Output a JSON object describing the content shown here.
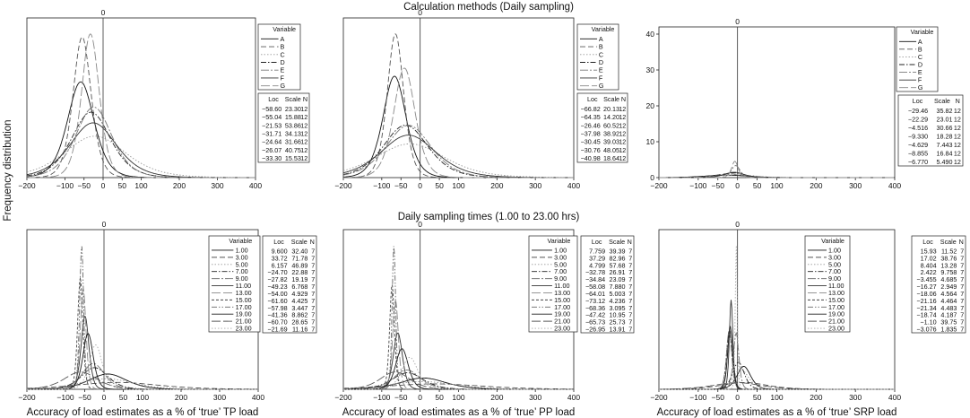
{
  "figure": {
    "top_title": "Calculation methods (Daily sampling)",
    "bottom_title": "Daily sampling times (1.00 to 23.00 hrs)",
    "ylabel": "Frequency distribution"
  },
  "chart_data": [
    {
      "type": "line",
      "group": "top",
      "xlabel": "",
      "xlim": [
        -200,
        400
      ],
      "xticks": [
        -200,
        -100,
        -50,
        0,
        50,
        100,
        200,
        300,
        400
      ],
      "ref_line_label": "0",
      "yaxis_visible": false,
      "legend_title": "Variable",
      "table_headers": [
        "Loc",
        "Scale",
        "N"
      ],
      "series": [
        {
          "name": "A",
          "dash": "solid",
          "loc": "-58.60",
          "scale": "23.30",
          "n": "12"
        },
        {
          "name": "B",
          "dash": "dash",
          "loc": "-55.04",
          "scale": "15.88",
          "n": "12"
        },
        {
          "name": "C",
          "dash": "dot",
          "loc": "-21.53",
          "scale": "53.86",
          "n": "12"
        },
        {
          "name": "D",
          "dash": "dashdot",
          "loc": "-31.71",
          "scale": "34.13",
          "n": "12"
        },
        {
          "name": "E",
          "dash": "longdashdot",
          "loc": "-24.64",
          "scale": "31.66",
          "n": "12"
        },
        {
          "name": "F",
          "dash": "solid",
          "loc": "-26.07",
          "scale": "40.75",
          "n": "12"
        },
        {
          "name": "G",
          "dash": "longdash",
          "loc": "-33.30",
          "scale": "15.53",
          "n": "12"
        }
      ]
    },
    {
      "type": "line",
      "group": "top",
      "xlabel": "",
      "xlim": [
        -200,
        400
      ],
      "xticks": [
        -200,
        -100,
        -50,
        0,
        50,
        100,
        200,
        300,
        400
      ],
      "ref_line_label": "0",
      "yaxis_visible": false,
      "legend_title": "Variable",
      "table_headers": [
        "Loc",
        "Scale",
        "N"
      ],
      "series": [
        {
          "name": "A",
          "dash": "solid",
          "loc": "-66.82",
          "scale": "20.13",
          "n": "12"
        },
        {
          "name": "B",
          "dash": "dash",
          "loc": "-64.35",
          "scale": "14.20",
          "n": "12"
        },
        {
          "name": "C",
          "dash": "dot",
          "loc": "-26.46",
          "scale": "60.52",
          "n": "12"
        },
        {
          "name": "D",
          "dash": "dashdot",
          "loc": "-37.98",
          "scale": "38.92",
          "n": "12"
        },
        {
          "name": "E",
          "dash": "longdashdot",
          "loc": "-30.45",
          "scale": "39.03",
          "n": "12"
        },
        {
          "name": "F",
          "dash": "solid",
          "loc": "-30.76",
          "scale": "48.05",
          "n": "12"
        },
        {
          "name": "G",
          "dash": "longdash",
          "loc": "-40.98",
          "scale": "18.64",
          "n": "12"
        }
      ]
    },
    {
      "type": "line",
      "group": "top",
      "xlabel": "",
      "xlim": [
        -200,
        400
      ],
      "xticks": [
        -200,
        -100,
        -50,
        0,
        50,
        100,
        200,
        300,
        400
      ],
      "ref_line_label": "0",
      "yaxis_visible": true,
      "ylim": [
        0,
        42
      ],
      "yticks": [
        0,
        10,
        20,
        30,
        40
      ],
      "legend_title": "Variable",
      "table_headers": [
        "Loc",
        "Scale",
        "N"
      ],
      "series": [
        {
          "name": "A",
          "dash": "solid",
          "loc": "-29.46",
          "scale": "35.82",
          "n": "12"
        },
        {
          "name": "B",
          "dash": "dash",
          "loc": "-22.29",
          "scale": "23.01",
          "n": "12"
        },
        {
          "name": "C",
          "dash": "dot",
          "loc": "-4.516",
          "scale": "30.66",
          "n": "12"
        },
        {
          "name": "D",
          "dash": "dashdot",
          "loc": "-9.330",
          "scale": "18.28",
          "n": "12"
        },
        {
          "name": "E",
          "dash": "longdashdot",
          "loc": "-4.629",
          "scale": "7.443",
          "n": "12"
        },
        {
          "name": "F",
          "dash": "solid",
          "loc": "-8.855",
          "scale": "16.84",
          "n": "12"
        },
        {
          "name": "G",
          "dash": "longdash",
          "loc": "-6.770",
          "scale": "5.490",
          "n": "12"
        }
      ]
    },
    {
      "type": "line",
      "group": "bottom",
      "xlabel": "Accuracy of load estimates as a % of ‘true’ TP load",
      "xlim": [
        -200,
        400
      ],
      "xticks": [
        -200,
        -100,
        -50,
        0,
        50,
        100,
        200,
        300,
        400
      ],
      "ref_line_label": "0",
      "yaxis_visible": false,
      "legend_title": "Variable",
      "table_headers": [
        "Loc",
        "Scale",
        "N"
      ],
      "series": [
        {
          "name": "1.00",
          "dash": "solid",
          "loc": "9.600",
          "scale": "32.40",
          "n": "7"
        },
        {
          "name": "3.00",
          "dash": "dash",
          "loc": "33.72",
          "scale": "71.78",
          "n": "7"
        },
        {
          "name": "5.00",
          "dash": "dot",
          "loc": "6.157",
          "scale": "46.89",
          "n": "7"
        },
        {
          "name": "7.00",
          "dash": "dashdot",
          "loc": "-24.70",
          "scale": "22.88",
          "n": "7"
        },
        {
          "name": "9.00",
          "dash": "longdashdot",
          "loc": "-27.82",
          "scale": "19.19",
          "n": "7"
        },
        {
          "name": "11.00",
          "dash": "solid",
          "loc": "-49.23",
          "scale": "6.768",
          "n": "7"
        },
        {
          "name": "13.00",
          "dash": "longdash",
          "loc": "-54.00",
          "scale": "4.929",
          "n": "7"
        },
        {
          "name": "15.00",
          "dash": "shortdash",
          "loc": "-61.60",
          "scale": "4.425",
          "n": "7"
        },
        {
          "name": "17.00",
          "dash": "dashdotdot",
          "loc": "-57.98",
          "scale": "3.447",
          "n": "7"
        },
        {
          "name": "19.00",
          "dash": "solid",
          "loc": "-41.36",
          "scale": "8.862",
          "n": "7"
        },
        {
          "name": "21.00",
          "dash": "longdash",
          "loc": "-60.70",
          "scale": "28.65",
          "n": "7"
        },
        {
          "name": "23.00",
          "dash": "dot",
          "loc": "-21.69",
          "scale": "11.16",
          "n": "7"
        }
      ]
    },
    {
      "type": "line",
      "group": "bottom",
      "xlabel": "Accuracy of load estimates as a % of ‘true’ PP load",
      "xlim": [
        -200,
        400
      ],
      "xticks": [
        -200,
        -100,
        -50,
        0,
        50,
        100,
        200,
        300,
        400
      ],
      "ref_line_label": "0",
      "yaxis_visible": false,
      "legend_title": "Variable",
      "table_headers": [
        "Loc",
        "Scale",
        "N"
      ],
      "series": [
        {
          "name": "1.00",
          "dash": "solid",
          "loc": "7.759",
          "scale": "39.39",
          "n": "7"
        },
        {
          "name": "3.00",
          "dash": "dash",
          "loc": "37.29",
          "scale": "82.96",
          "n": "7"
        },
        {
          "name": "5.00",
          "dash": "dot",
          "loc": "4.799",
          "scale": "57.68",
          "n": "7"
        },
        {
          "name": "7.00",
          "dash": "dashdot",
          "loc": "-32.78",
          "scale": "26.91",
          "n": "7"
        },
        {
          "name": "9.00",
          "dash": "longdashdot",
          "loc": "-34.84",
          "scale": "23.09",
          "n": "7"
        },
        {
          "name": "11.00",
          "dash": "solid",
          "loc": "-58.08",
          "scale": "7.880",
          "n": "7"
        },
        {
          "name": "13.00",
          "dash": "longdash",
          "loc": "-64.01",
          "scale": "5.003",
          "n": "7"
        },
        {
          "name": "15.00",
          "dash": "shortdash",
          "loc": "-73.12",
          "scale": "4.236",
          "n": "7"
        },
        {
          "name": "17.00",
          "dash": "dashdotdot",
          "loc": "-68.36",
          "scale": "3.095",
          "n": "7"
        },
        {
          "name": "19.00",
          "dash": "solid",
          "loc": "-47.42",
          "scale": "10.95",
          "n": "7"
        },
        {
          "name": "21.00",
          "dash": "longdash",
          "loc": "-65.73",
          "scale": "25.73",
          "n": "7"
        },
        {
          "name": "23.00",
          "dash": "dot",
          "loc": "-26.95",
          "scale": "13.91",
          "n": "7"
        }
      ]
    },
    {
      "type": "line",
      "group": "bottom",
      "xlabel": "Accuracy of load estimates as a % of ‘true’ SRP load",
      "xlim": [
        -200,
        400
      ],
      "xticks": [
        -200,
        -100,
        -50,
        0,
        50,
        100,
        200,
        300,
        400
      ],
      "ref_line_label": "0",
      "yaxis_visible": false,
      "legend_title": "Variable",
      "table_headers": [
        "Loc",
        "Scale",
        "N"
      ],
      "series": [
        {
          "name": "1.00",
          "dash": "solid",
          "loc": "15.93",
          "scale": "11.52",
          "n": "7"
        },
        {
          "name": "3.00",
          "dash": "dash",
          "loc": "17.02",
          "scale": "38.76",
          "n": "7"
        },
        {
          "name": "5.00",
          "dash": "dot",
          "loc": "8.404",
          "scale": "13.28",
          "n": "7"
        },
        {
          "name": "7.00",
          "dash": "dashdot",
          "loc": "2.422",
          "scale": "9.758",
          "n": "7"
        },
        {
          "name": "9.00",
          "dash": "longdashdot",
          "loc": "-3.455",
          "scale": "4.685",
          "n": "7"
        },
        {
          "name": "11.00",
          "dash": "solid",
          "loc": "-16.27",
          "scale": "2.949",
          "n": "7"
        },
        {
          "name": "13.00",
          "dash": "longdash",
          "loc": "-18.06",
          "scale": "4.564",
          "n": "7"
        },
        {
          "name": "15.00",
          "dash": "shortdash",
          "loc": "-21.16",
          "scale": "4.464",
          "n": "7"
        },
        {
          "name": "17.00",
          "dash": "dashdotdot",
          "loc": "-21.34",
          "scale": "4.483",
          "n": "7"
        },
        {
          "name": "19.00",
          "dash": "solid",
          "loc": "-18.74",
          "scale": "4.187",
          "n": "7"
        },
        {
          "name": "21.00",
          "dash": "longdash",
          "loc": "-1.10",
          "scale": "39.75",
          "n": "7"
        },
        {
          "name": "23.00",
          "dash": "dot",
          "loc": "-3.076",
          "scale": "1.835",
          "n": "7"
        }
      ]
    }
  ]
}
